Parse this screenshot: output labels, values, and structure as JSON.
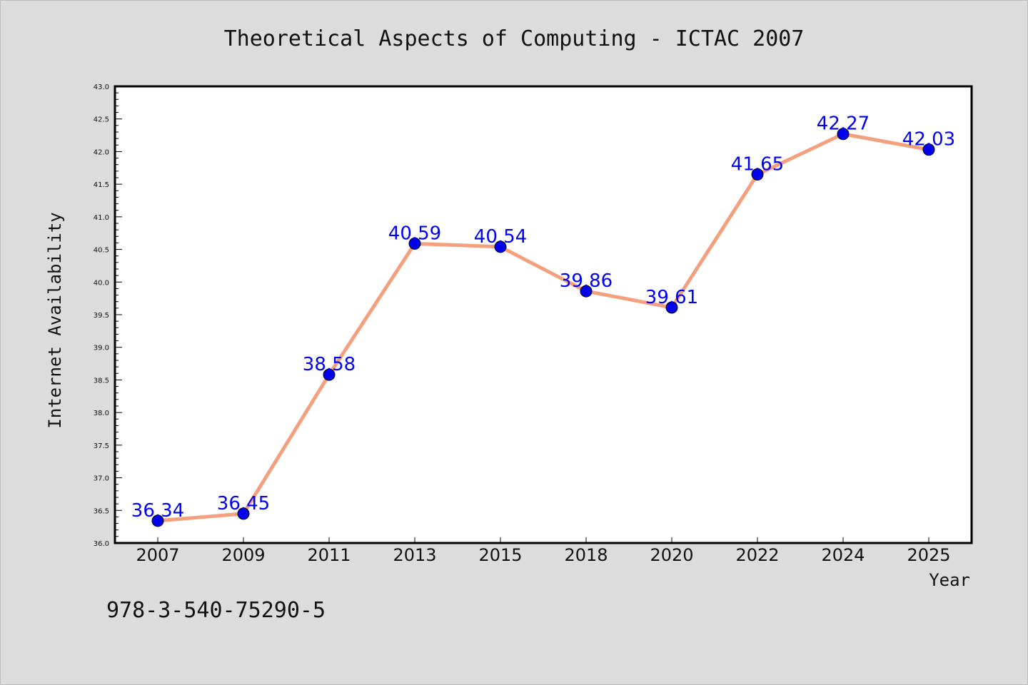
{
  "chart_data": {
    "type": "line",
    "title": "Theoretical Aspects of Computing - ICTAC 2007",
    "xlabel": "Year",
    "ylabel": "Internet Availability",
    "categories": [
      "2007",
      "2009",
      "2011",
      "2013",
      "2015",
      "2018",
      "2020",
      "2022",
      "2024",
      "2025"
    ],
    "series": [
      {
        "values": [
          36.34,
          36.45,
          38.58,
          40.59,
          40.54,
          39.86,
          39.61,
          41.65,
          42.27,
          42.03
        ]
      }
    ],
    "ylim": [
      36.0,
      43.0
    ],
    "yticks": [
      36.0,
      36.5,
      37.0,
      37.5,
      38.0,
      38.5,
      39.0,
      39.5,
      40.0,
      40.5,
      41.0,
      41.5,
      42.0,
      42.5,
      43.0
    ],
    "data_labels": [
      "36.34",
      "36.45",
      "38.58",
      "40.59",
      "40.54",
      "39.86",
      "39.61",
      "41.65",
      "42.27",
      "42.03"
    ],
    "line_color": "#f4a07f",
    "marker_color": "#0000ee",
    "label_color": "#0000ff",
    "grid": false,
    "legend": "none"
  },
  "footer_text": "978-3-540-75290-5",
  "colors": {
    "page_background": "#dcdcdc",
    "plot_background": "#ffffff"
  }
}
